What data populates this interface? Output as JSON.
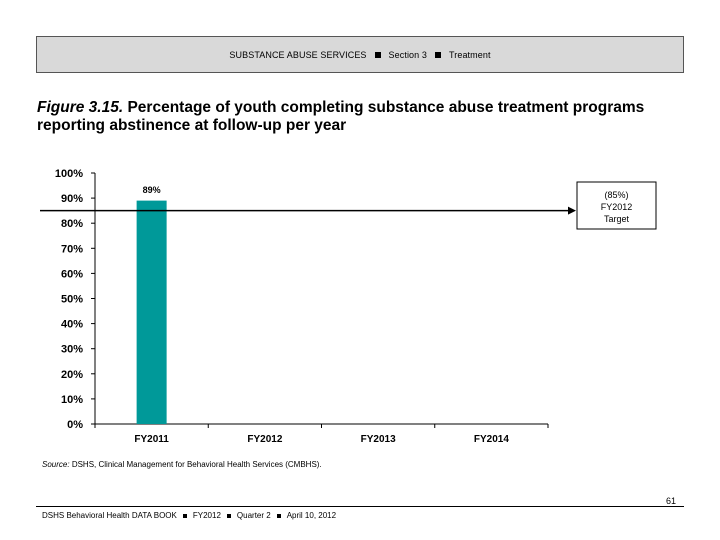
{
  "header": {
    "section_main": "SUBSTANCE ABUSE SERVICES",
    "section_num": "Section 3",
    "section_topic": "Treatment"
  },
  "figure": {
    "number": "Figure 3.15.",
    "title": "Percentage of youth completing substance abuse treatment programs reporting abstinence at follow-up per year"
  },
  "chart_data": {
    "type": "bar",
    "categories": [
      "FY2011",
      "FY2012",
      "FY2013",
      "FY2014"
    ],
    "values": [
      89,
      null,
      null,
      null
    ],
    "value_labels": [
      "89%",
      "",
      "",
      ""
    ],
    "ylim": [
      0,
      100
    ],
    "yticks": [
      0,
      10,
      20,
      30,
      40,
      50,
      60,
      70,
      80,
      90,
      100
    ],
    "ytick_labels": [
      "0%",
      "10%",
      "20%",
      "30%",
      "40%",
      "50%",
      "60%",
      "70%",
      "80%",
      "90%",
      "100%"
    ],
    "bar_color": "#009999",
    "target": {
      "value": 85,
      "label_lines": [
        "(85%)",
        "FY2012",
        "Target"
      ]
    },
    "xlabel": "",
    "ylabel": "",
    "grid": false
  },
  "source": {
    "prefix": "Source:",
    "text": "DSHS, Clinical Management for Behavioral Health Services (CMBHS)."
  },
  "footer": {
    "book": "DSHS Behavioral Health DATA BOOK",
    "year": "FY2012",
    "quarter": "Quarter 2",
    "date": "April 10, 2012",
    "page": "61"
  }
}
